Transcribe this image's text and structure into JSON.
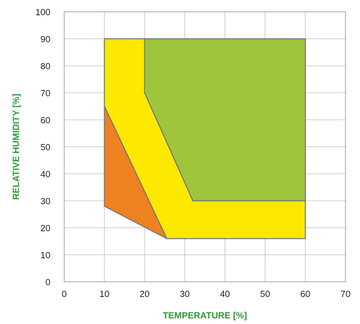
{
  "chart_data": {
    "type": "area",
    "xlabel": "TEMPERATURE [%]",
    "ylabel": "RELATIVE HUMIDITY [%]",
    "xlim": [
      0,
      70
    ],
    "ylim": [
      0,
      100
    ],
    "xticks": [
      0,
      10,
      20,
      30,
      40,
      50,
      60,
      70
    ],
    "yticks": [
      0,
      10,
      20,
      30,
      40,
      50,
      60,
      70,
      80,
      90,
      100
    ],
    "grid": true,
    "regions": [
      {
        "color": "#fde800",
        "points": [
          [
            10,
            90
          ],
          [
            20,
            90
          ],
          [
            20,
            70
          ],
          [
            32,
            30
          ],
          [
            60,
            30
          ],
          [
            60,
            16
          ],
          [
            25.5,
            16
          ],
          [
            10,
            65
          ]
        ]
      },
      {
        "color": "#9ec53b",
        "points": [
          [
            20,
            90
          ],
          [
            60,
            90
          ],
          [
            60,
            30
          ],
          [
            32,
            30
          ],
          [
            20,
            70
          ]
        ]
      },
      {
        "color": "#ee8120",
        "points": [
          [
            10,
            65
          ],
          [
            10,
            28
          ],
          [
            25.5,
            16
          ]
        ]
      }
    ]
  }
}
